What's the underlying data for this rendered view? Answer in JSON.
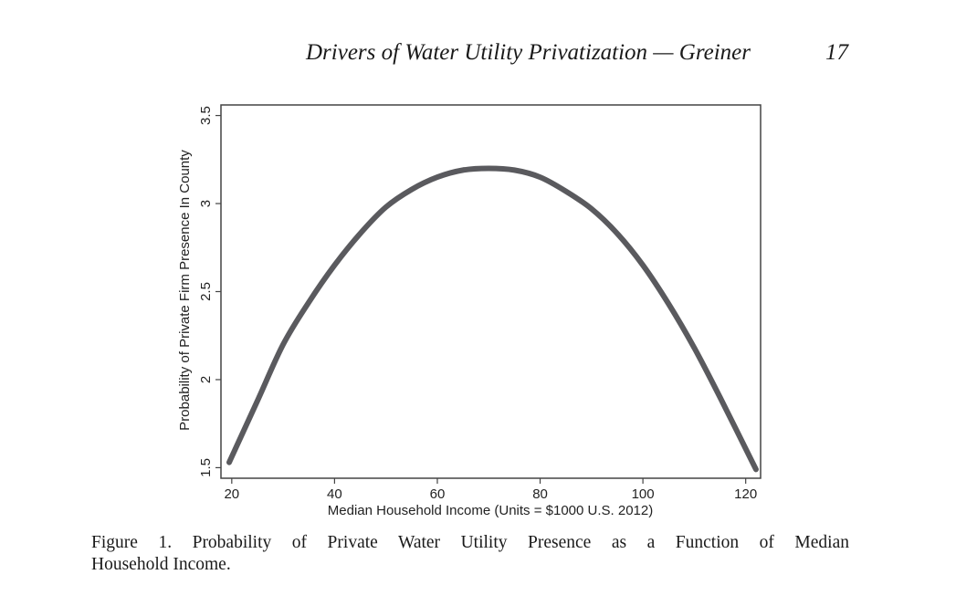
{
  "header": {
    "running_title": "Drivers of Water Utility Privatization — Greiner",
    "page_number": "17"
  },
  "caption_lines": [
    "Figure 1.  Probability of Private Water Utility Presence as a Function of Median",
    "Household Income."
  ],
  "chart_data": {
    "type": "line",
    "title": "",
    "xlabel": "Median Household Income (Units = $1000 U.S. 2012)",
    "ylabel": "Probability of Private Firm Presence In County",
    "xlim": [
      17.9,
      122.9
    ],
    "ylim": [
      1.44,
      3.56
    ],
    "xticks": [
      20,
      40,
      60,
      80,
      100,
      120
    ],
    "xtick_labels": [
      "20",
      "40",
      "60",
      "80",
      "100",
      "120"
    ],
    "yticks": [
      1.5,
      2,
      2.5,
      3,
      3.5
    ],
    "ytick_labels": [
      "1.5",
      "2",
      "2.5",
      "3",
      "3.5"
    ],
    "grid": false,
    "series": [
      {
        "color": "#5a5a5e",
        "x": [
          19.5,
          25,
          30,
          35,
          40,
          45,
          50,
          55,
          60,
          65,
          70,
          75,
          80,
          85,
          90,
          95,
          100,
          105,
          110,
          115,
          122
        ],
        "y": [
          1.53,
          1.88,
          2.2,
          2.44,
          2.65,
          2.83,
          2.98,
          3.08,
          3.15,
          3.19,
          3.2,
          3.19,
          3.15,
          3.07,
          2.97,
          2.83,
          2.65,
          2.43,
          2.18,
          1.9,
          1.49
        ]
      }
    ]
  }
}
